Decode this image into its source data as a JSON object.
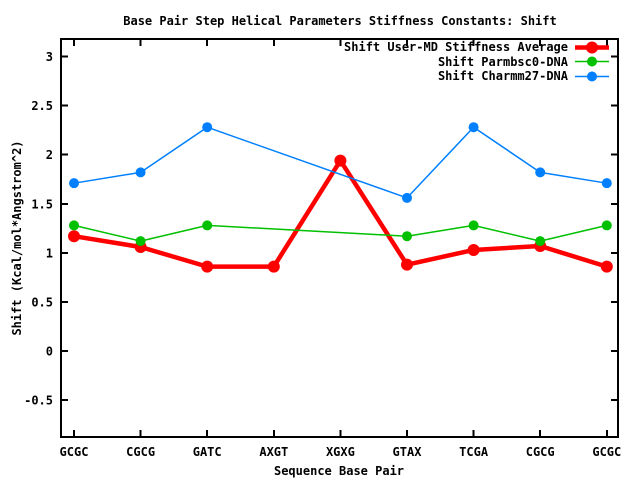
{
  "chart_data": {
    "type": "line",
    "title": "Base Pair Step Helical Parameters Stiffness Constants: Shift",
    "xlabel": "Sequence Base Pair",
    "ylabel": "Shift (Kcal/mol*Angstrom^2)",
    "categories": [
      "GCGC",
      "CGCG",
      "GATC",
      "AXGT",
      "XGXG",
      "GTAX",
      "TCGA",
      "CGCG",
      "GCGC"
    ],
    "y_tick_labels": [
      "3",
      "2.5",
      "2",
      "1.5",
      "1",
      "0.5",
      "0",
      "-0.5"
    ],
    "y_tick_values": [
      3,
      2.5,
      2,
      1.5,
      1,
      0.5,
      0,
      -0.5
    ],
    "ylim": [
      -0.87,
      3.18
    ],
    "grid": false,
    "legend_position": "top-right-inside",
    "marker": "filled-circle",
    "series": [
      {
        "name": "Shift User-MD Stiffness Average",
        "color": "#ff0000",
        "line_width": 4.5,
        "marker_radius": 6,
        "values": [
          1.17,
          1.06,
          0.86,
          0.86,
          1.94,
          0.88,
          1.03,
          1.07,
          0.86
        ]
      },
      {
        "name": "Shift Parmbsc0-DNA",
        "color": "#00c000",
        "line_width": 1.5,
        "marker_radius": 5,
        "values": [
          1.28,
          1.12,
          1.28,
          null,
          null,
          1.17,
          1.28,
          1.12,
          1.28
        ]
      },
      {
        "name": "Shift Charmm27-DNA",
        "color": "#0080ff",
        "line_width": 1.5,
        "marker_radius": 5,
        "values": [
          1.71,
          1.82,
          2.28,
          null,
          null,
          1.56,
          2.28,
          1.82,
          1.71
        ]
      }
    ]
  },
  "colors": {
    "background": "#ffffff",
    "axis": "#000000",
    "text": "#000000"
  }
}
